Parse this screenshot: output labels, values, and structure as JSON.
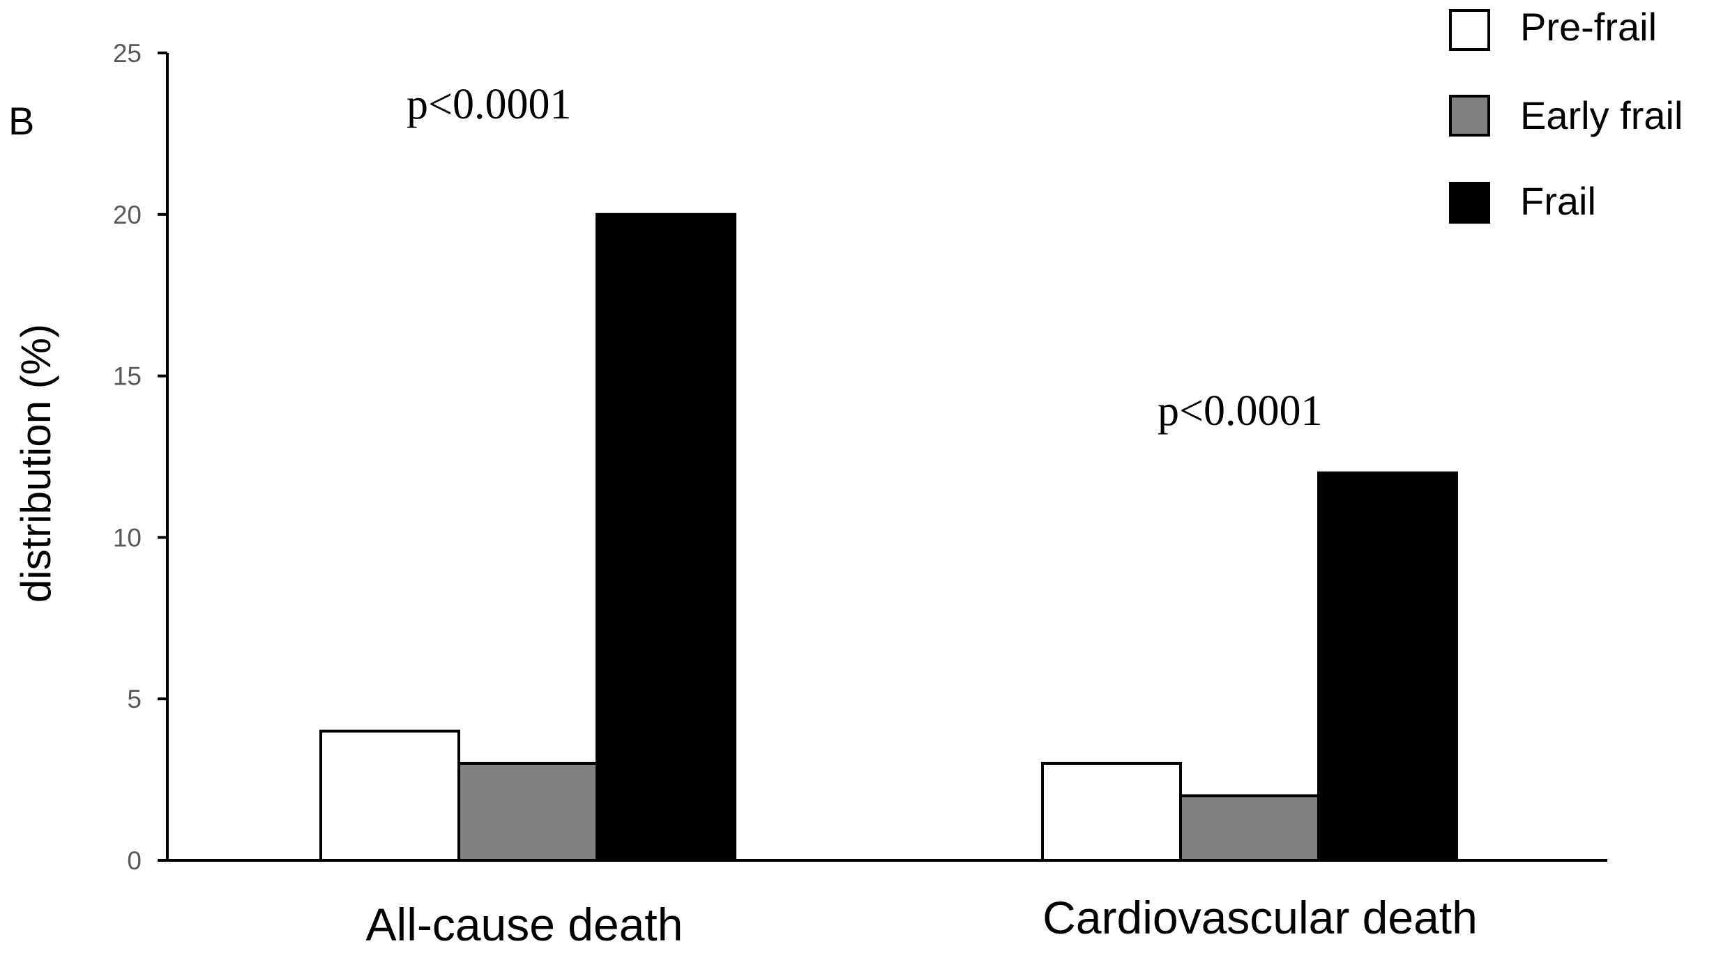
{
  "chart_data": {
    "type": "bar",
    "panel_label": "B",
    "title": "",
    "xlabel": "",
    "ylabel": "distribution (%)",
    "ylim": [
      0,
      25
    ],
    "yticks": [
      "0",
      "5",
      "10",
      "15",
      "20",
      "25"
    ],
    "categories": [
      "All-cause death",
      "Cardiovascular death"
    ],
    "series": [
      {
        "name": "Pre-frail",
        "color": "#ffffff",
        "values": [
          4,
          3
        ]
      },
      {
        "name": "Early frail",
        "color": "#808080",
        "values": [
          3,
          2
        ]
      },
      {
        "name": "Frail",
        "color": "#000000",
        "values": [
          20,
          12
        ]
      }
    ],
    "annotations": [
      "p<0.0001",
      "p<0.0001"
    ],
    "legend_position": "top-right",
    "grid": false
  }
}
